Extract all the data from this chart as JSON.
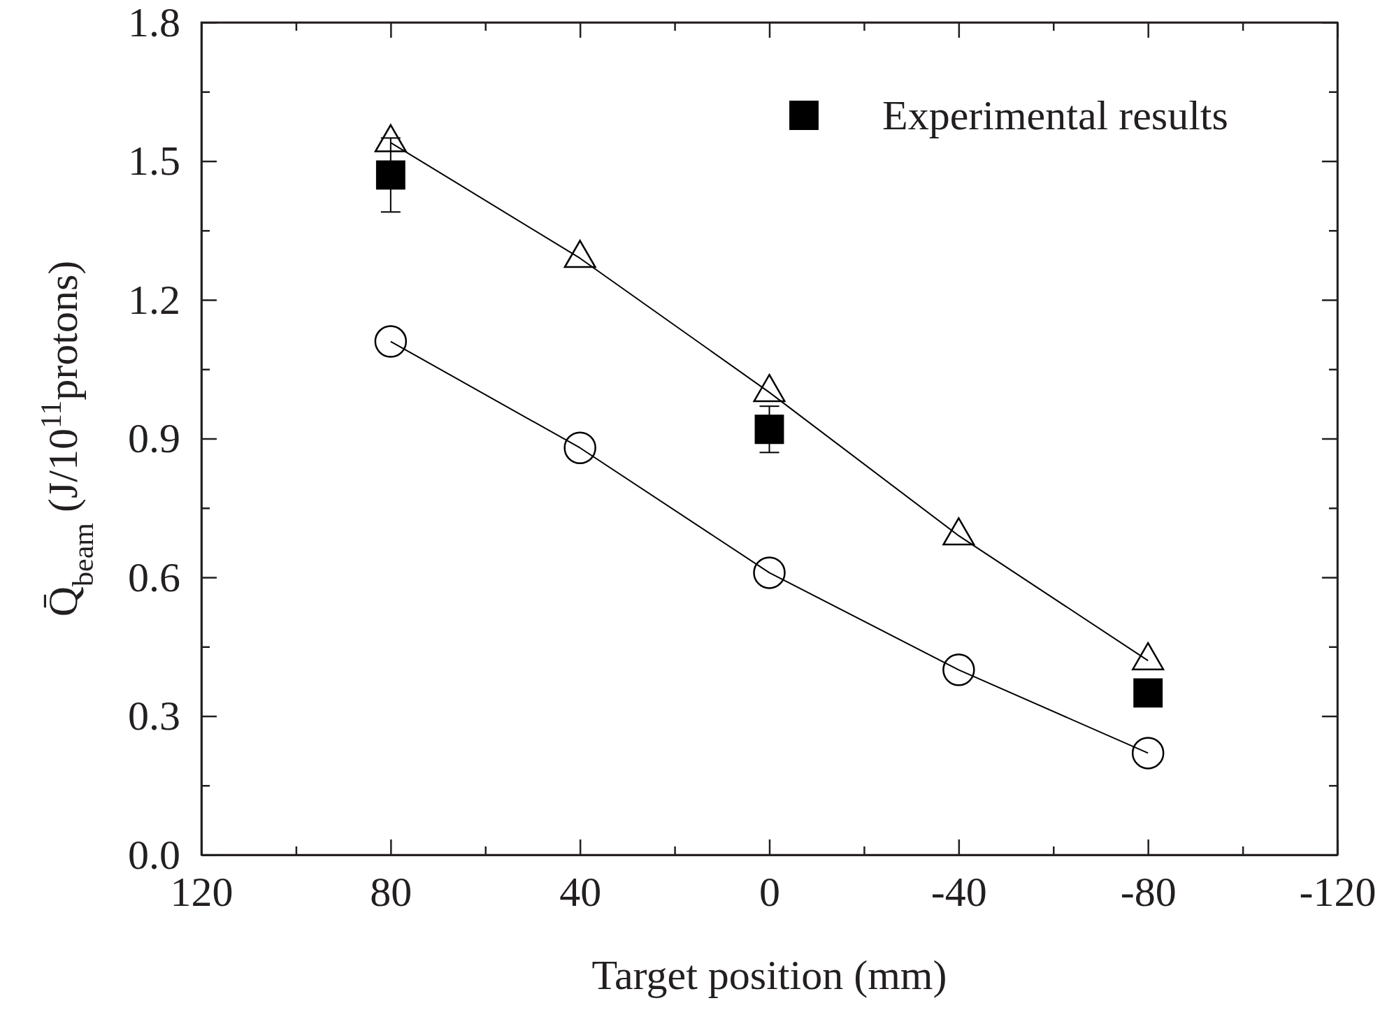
{
  "chart_data": {
    "type": "line",
    "xlabel": "Target position (mm)",
    "ylabel": "Q̄$_{beam}$ (J/10$^{11}$protons)",
    "xlim": [
      120,
      -120
    ],
    "xticks": [
      120,
      {
        "value": 100,
        "label": null
      },
      80,
      {
        "value": 60,
        "label": null
      },
      40,
      {
        "value": 20,
        "label": null
      },
      0,
      {
        "value": -20,
        "label": null
      },
      -40,
      {
        "value": -60,
        "label": null
      },
      -80,
      {
        "value": -100,
        "label": null
      },
      -120
    ],
    "ylim": [
      0,
      1.8
    ],
    "yticks": [
      {
        "value": 0,
        "label": "0.0"
      },
      {
        "value": 0.15,
        "label": null
      },
      0.3,
      {
        "value": 0.45,
        "label": null
      },
      0.6,
      {
        "value": 0.75,
        "label": null
      },
      0.9,
      {
        "value": 1.05,
        "label": null
      },
      1.2,
      {
        "value": 1.35,
        "label": null
      },
      1.5,
      {
        "value": 1.65,
        "label": null
      },
      1.8
    ],
    "legend": "top right",
    "grid": false,
    "series": [
      {
        "name": "Experimental results",
        "type": "scatter",
        "marker": "square",
        "color": "#000000",
        "x": [
          80,
          0,
          -80
        ],
        "values": [
          1.47,
          0.92,
          0.35
        ],
        "errors": [
          0.08,
          0.05,
          null
        ]
      },
      {
        "marker": "circle",
        "color": "#000000",
        "x": [
          80,
          40,
          0,
          -40,
          -80
        ],
        "values": [
          1.11,
          0.88,
          0.61,
          0.4,
          0.22
        ]
      },
      {
        "marker": "triangle",
        "color": "#000000",
        "x": [
          80,
          40,
          0,
          -40,
          -80
        ],
        "values": [
          1.54,
          1.29,
          1.0,
          0.69,
          0.42
        ]
      }
    ]
  }
}
